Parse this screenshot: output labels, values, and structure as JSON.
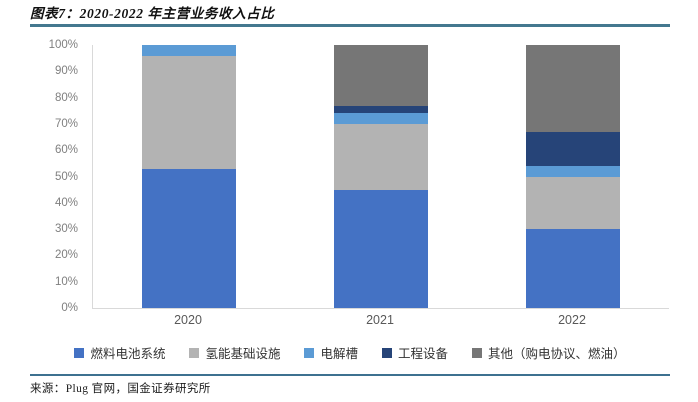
{
  "header": {
    "title": "图表7：2020-2022 年主营业务收入占比"
  },
  "footer": {
    "source": "来源：Plug 官网，国金证券研究所"
  },
  "colors": {
    "rule": "#44788f",
    "axis_line": "#d9d9d9",
    "ytick_text": "#7f7f7f",
    "xtick_text": "#595959"
  },
  "chart_data": {
    "type": "bar",
    "stacked": true,
    "stacked_total": 100,
    "title": "2020-2022 年主营业务收入占比",
    "categories": [
      "2020",
      "2021",
      "2022"
    ],
    "series": [
      {
        "name": "燃料电池系统",
        "color": "#4472C4",
        "values": [
          53,
          45,
          30
        ]
      },
      {
        "name": "氢能基础设施",
        "color": "#B3B3B3",
        "values": [
          43,
          25,
          20
        ]
      },
      {
        "name": "电解槽",
        "color": "#5B9BD5",
        "values": [
          4,
          4,
          4
        ]
      },
      {
        "name": "工程设备",
        "color": "#264478",
        "values": [
          0,
          3,
          13
        ]
      },
      {
        "name": "其他（购电协议、燃油）",
        "color": "#767676",
        "values": [
          0,
          23,
          33
        ]
      }
    ],
    "xlabel": "",
    "ylabel": "",
    "ylim": [
      0,
      100
    ],
    "yticks": [
      "0%",
      "10%",
      "20%",
      "30%",
      "40%",
      "50%",
      "60%",
      "70%",
      "80%",
      "90%",
      "100%"
    ],
    "grid": false,
    "legend_position": "bottom"
  }
}
